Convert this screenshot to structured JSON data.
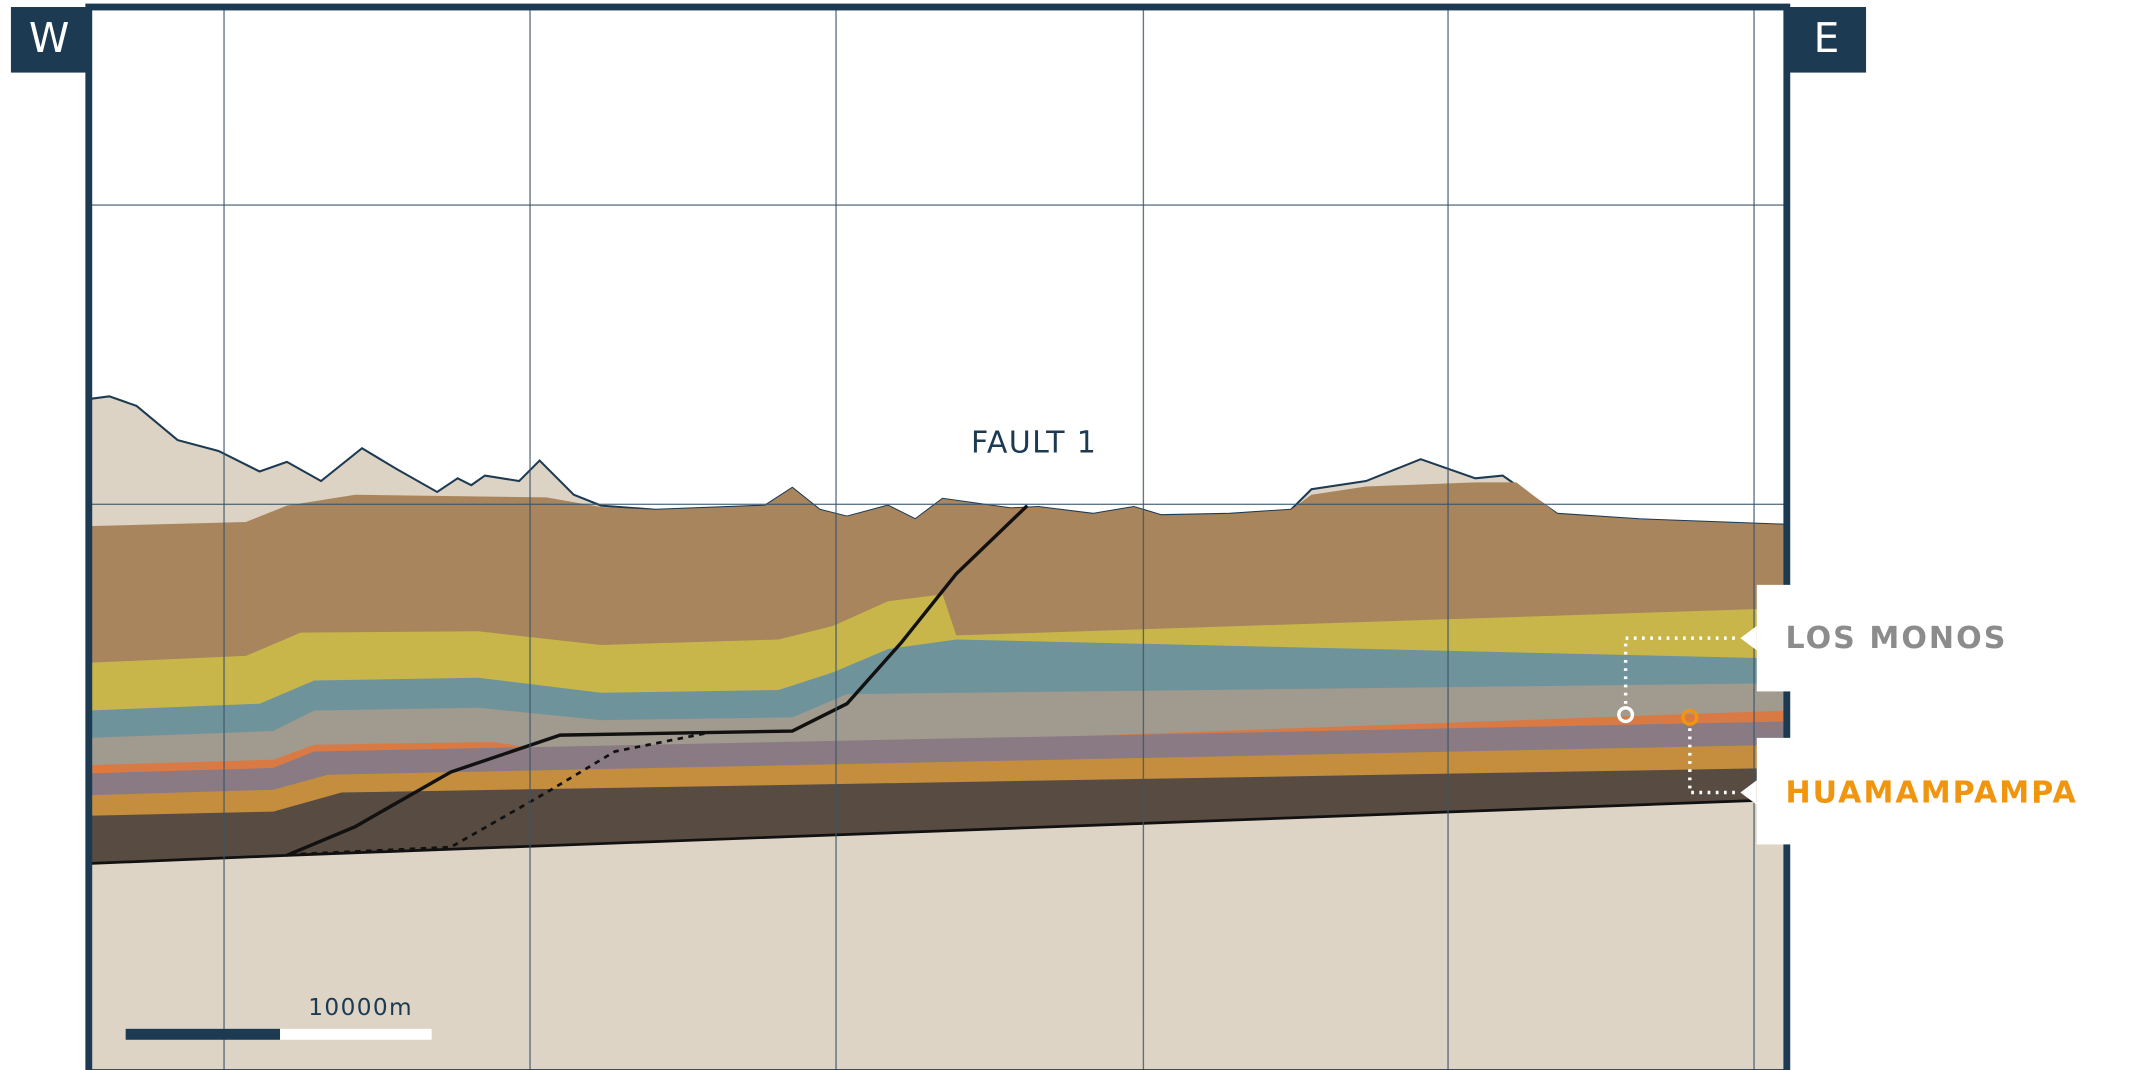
{
  "compass": {
    "west": "W",
    "east": "E"
  },
  "fault": {
    "label": "FAULT 1"
  },
  "labels": [
    {
      "name": "LOS MONOS"
    },
    {
      "name": "HUAMAMPAMPA"
    }
  ],
  "scale_bar": {
    "label": "10000m"
  }
}
